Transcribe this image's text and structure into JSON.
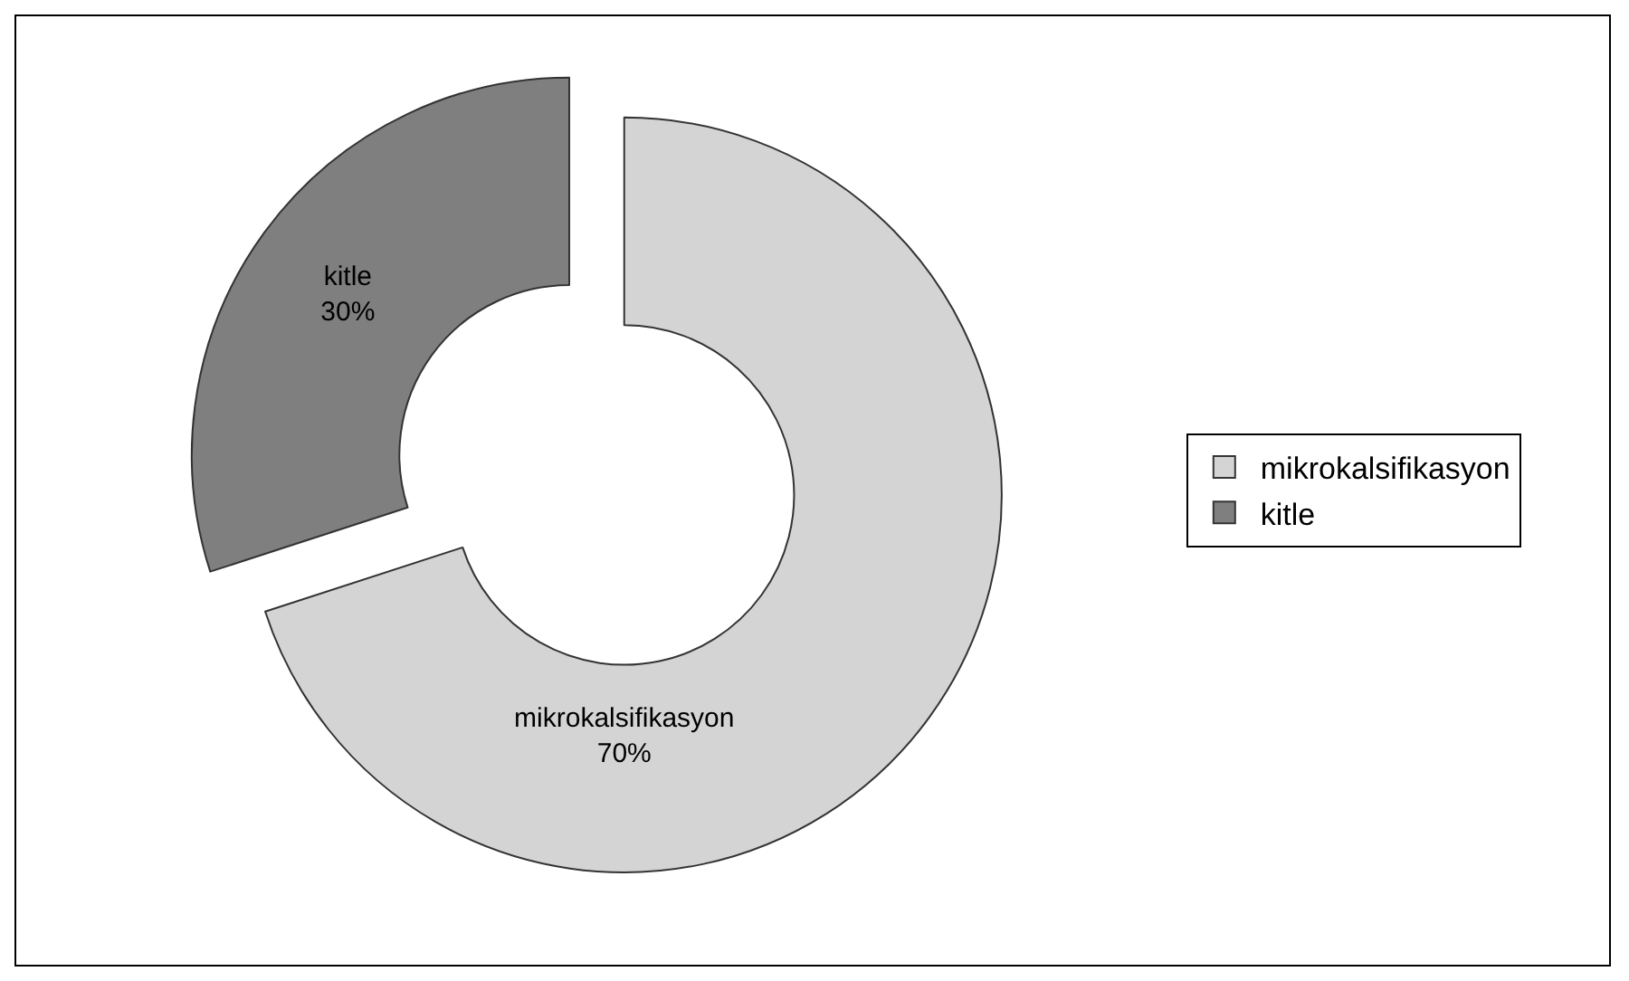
{
  "chart_data": {
    "type": "donut",
    "categories": [
      "mikrokalsifikasyon",
      "kitle"
    ],
    "values": [
      70,
      30
    ],
    "value_labels": [
      "70%",
      "30%"
    ],
    "colors": [
      "#d4d4d4",
      "#7f7f7f"
    ],
    "legend": "right"
  }
}
